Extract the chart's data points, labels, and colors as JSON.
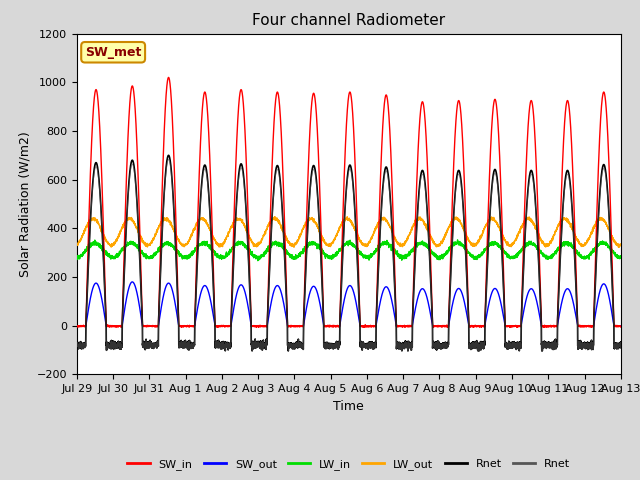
{
  "title": "Four channel Radiometer",
  "xlabel": "Time",
  "ylabel": "Solar Radiation (W/m2)",
  "ylim": [
    -200,
    1200
  ],
  "yticks": [
    -200,
    0,
    200,
    400,
    600,
    800,
    1000,
    1200
  ],
  "x_labels": [
    "Jul 29",
    "Jul 30",
    "Jul 31",
    "Aug 1",
    "Aug 2",
    "Aug 3",
    "Aug 4",
    "Aug 5",
    "Aug 6",
    "Aug 7",
    "Aug 8",
    "Aug 9",
    "Aug 10",
    "Aug 11",
    "Aug 12",
    "Aug 13"
  ],
  "num_days": 15,
  "SW_in_peaks": [
    970,
    985,
    1020,
    960,
    970,
    960,
    955,
    960,
    948,
    920,
    925,
    930,
    925,
    925,
    960
  ],
  "SW_out_peaks": [
    175,
    180,
    175,
    165,
    168,
    165,
    162,
    165,
    160,
    152,
    153,
    153,
    152,
    152,
    172
  ],
  "LW_in_base": 310,
  "LW_in_amp": 30,
  "LW_out_base": 385,
  "LW_out_amp": 55,
  "Rnet_peaks": [
    670,
    680,
    700,
    660,
    665,
    658,
    658,
    660,
    652,
    638,
    638,
    642,
    638,
    638,
    662
  ],
  "Rnet_night": -80,
  "background_color": "#d8d8d8",
  "plot_bg_color": "#ffffff",
  "band_color": "#e0e0e0",
  "SW_in_color": "#ff0000",
  "SW_out_color": "#0000ff",
  "LW_in_color": "#00dd00",
  "LW_out_color": "#ffa500",
  "Rnet_color": "#000000",
  "Rnet2_color": "#555555",
  "annotation_text": "SW_met",
  "annotation_bg": "#ffffaa",
  "annotation_border": "#cc8800",
  "annotation_text_color": "#880000",
  "title_fontsize": 11,
  "axis_fontsize": 9,
  "tick_fontsize": 8
}
